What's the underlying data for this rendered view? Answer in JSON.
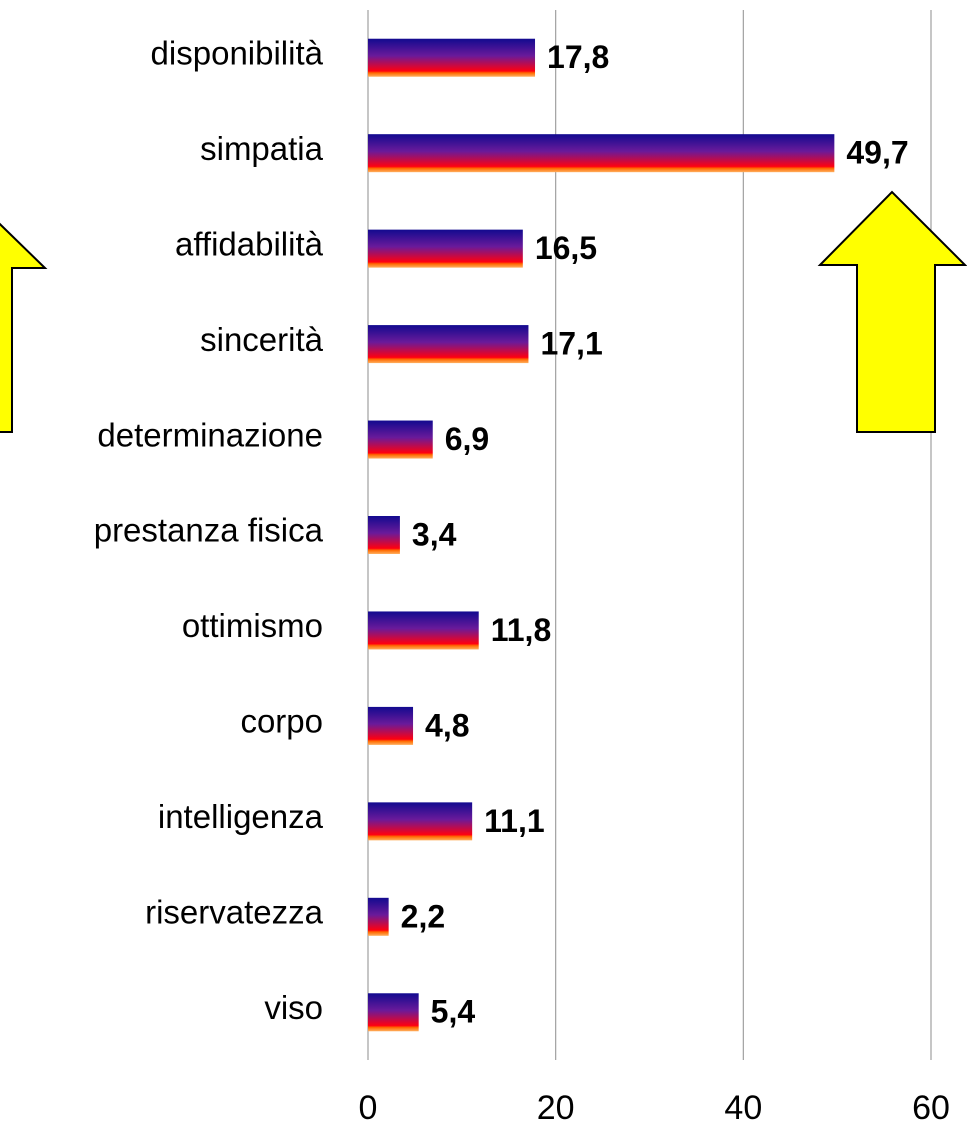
{
  "chart_data": {
    "type": "bar",
    "orientation": "horizontal",
    "categories": [
      "disponibilità",
      "simpatia",
      "affidabilità",
      "sincerità",
      "determinazione",
      "prestanza fisica",
      "ottimismo",
      "corpo",
      "intelligenza",
      "riservatezza",
      "viso"
    ],
    "values": [
      17.8,
      49.7,
      16.5,
      17.1,
      6.9,
      3.4,
      11.8,
      4.8,
      11.1,
      2.2,
      5.4
    ],
    "value_labels": [
      "17,8",
      "49,7",
      "16,5",
      "17,1",
      "6,9",
      "3,4",
      "11,8",
      "4,8",
      "11,1",
      "2,2",
      "5,4"
    ],
    "xlim": [
      0,
      60
    ],
    "xticks": [
      0,
      20,
      40,
      60
    ],
    "grid": true
  }
}
